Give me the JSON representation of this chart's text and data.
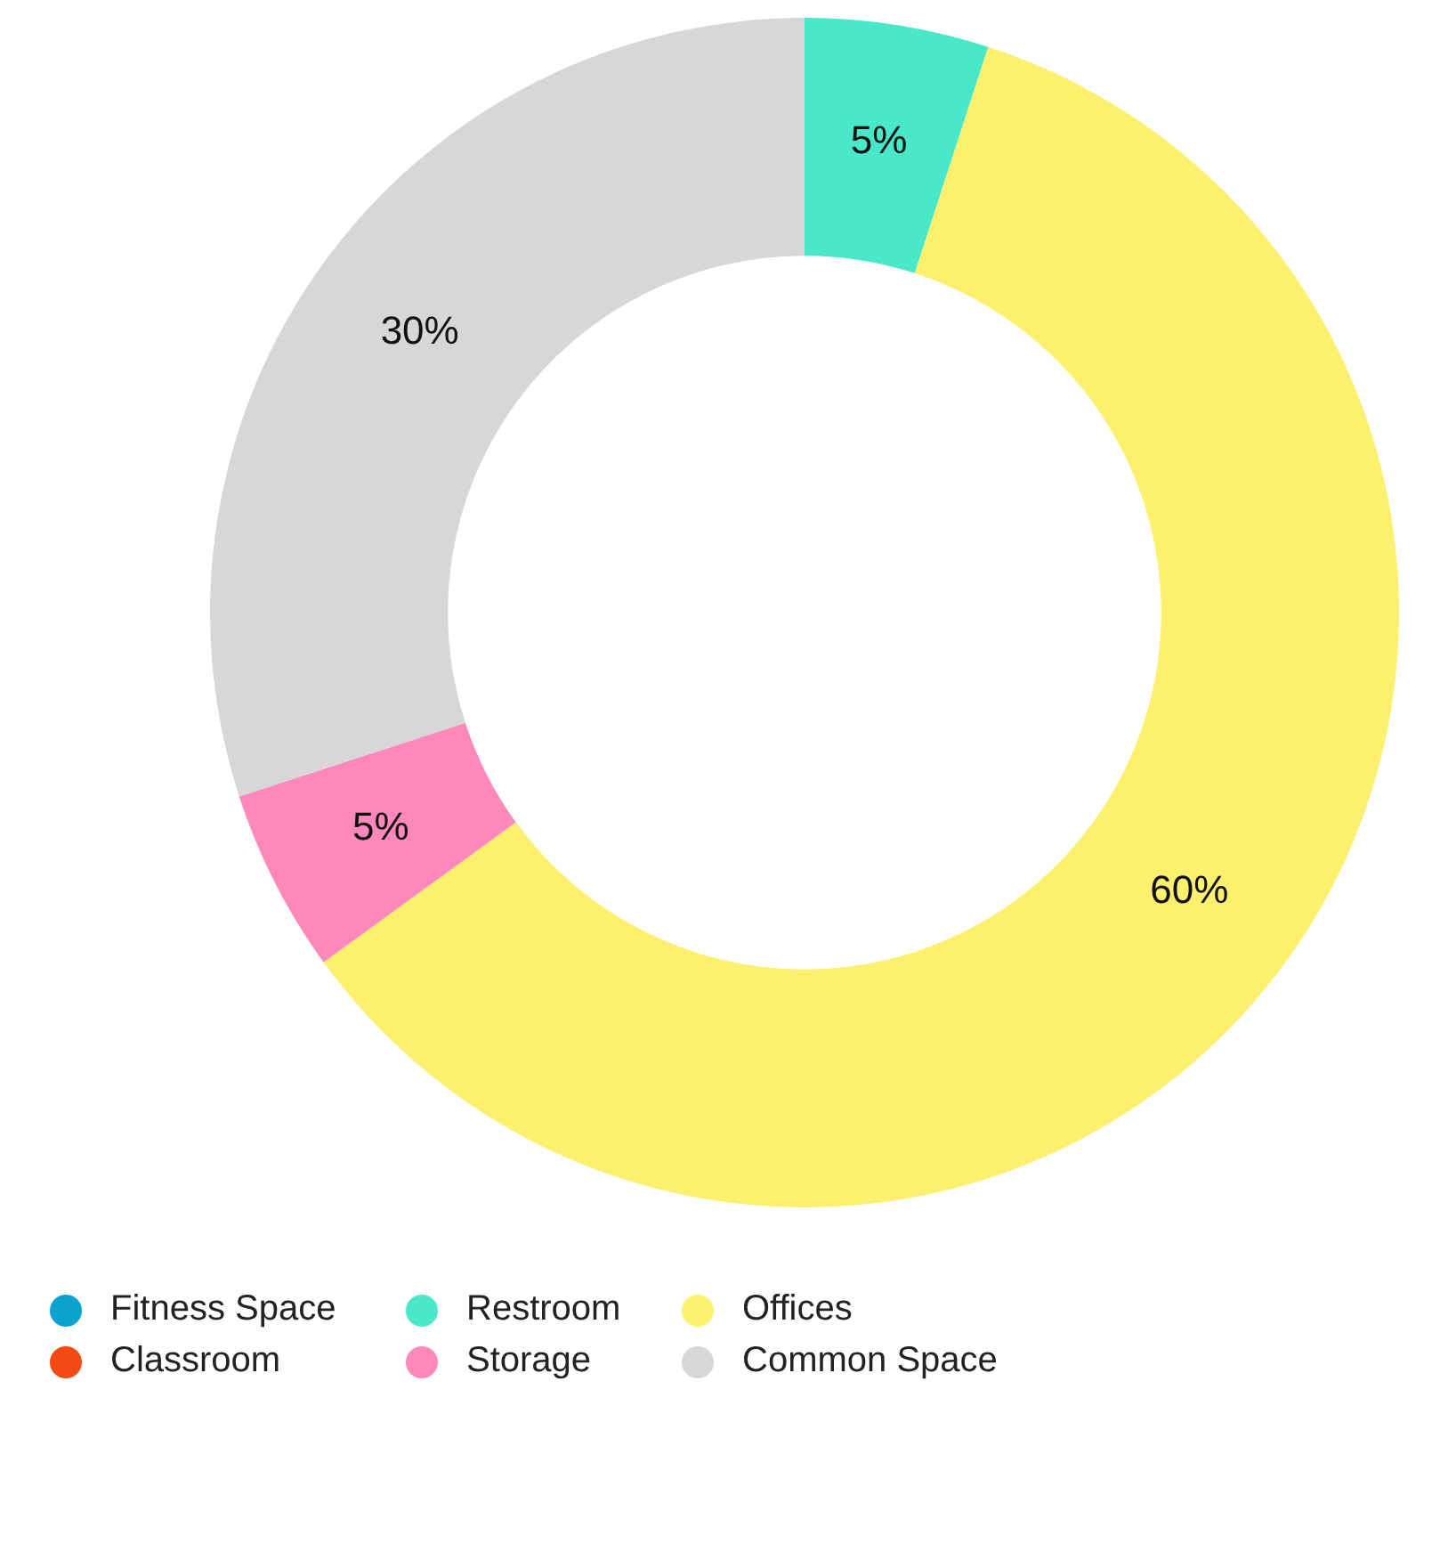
{
  "chart_data": {
    "type": "donut",
    "categories": [
      "Fitness Space",
      "Restroom",
      "Offices",
      "Classroom",
      "Storage",
      "Common Space"
    ],
    "values": [
      0,
      5,
      60,
      0,
      5,
      30
    ],
    "colors": [
      "#0aa3cf",
      "#48e8c8",
      "#fdf06e",
      "#f24a12",
      "#fd88bb",
      "#d8d6d7"
    ],
    "value_labels": [
      null,
      "5%",
      "60%",
      null,
      "5%",
      "30%"
    ],
    "legend": "bottom left"
  }
}
